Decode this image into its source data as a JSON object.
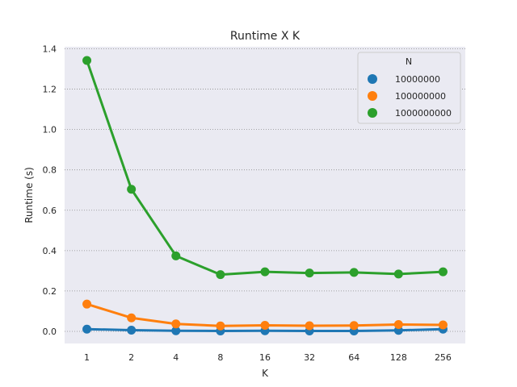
{
  "chart_data": {
    "type": "line",
    "title": "Runtime X K",
    "xlabel": "K",
    "ylabel": "Runtime (s)",
    "categories": [
      "1",
      "2",
      "4",
      "8",
      "16",
      "32",
      "64",
      "128",
      "256"
    ],
    "ylim": [
      -0.06,
      1.41
    ],
    "yticks": [
      "0.0",
      "0.2",
      "0.4",
      "0.6",
      "0.8",
      "1.0",
      "1.2",
      "1.4"
    ],
    "grid": "horizontal dotted",
    "legend_title": "N",
    "legend_position": "top-right",
    "series": [
      {
        "name": "10000000",
        "color": "#1f77b4",
        "values": [
          0.011,
          0.006,
          0.003,
          0.002,
          0.003,
          0.002,
          0.002,
          0.005,
          0.011
        ]
      },
      {
        "name": "100000000",
        "color": "#ff7f0e",
        "values": [
          0.135,
          0.067,
          0.037,
          0.027,
          0.03,
          0.028,
          0.029,
          0.034,
          0.032
        ]
      },
      {
        "name": "1000000000",
        "color": "#2ca02c",
        "values": [
          1.342,
          0.704,
          0.374,
          0.281,
          0.295,
          0.289,
          0.292,
          0.284,
          0.295
        ]
      }
    ]
  }
}
